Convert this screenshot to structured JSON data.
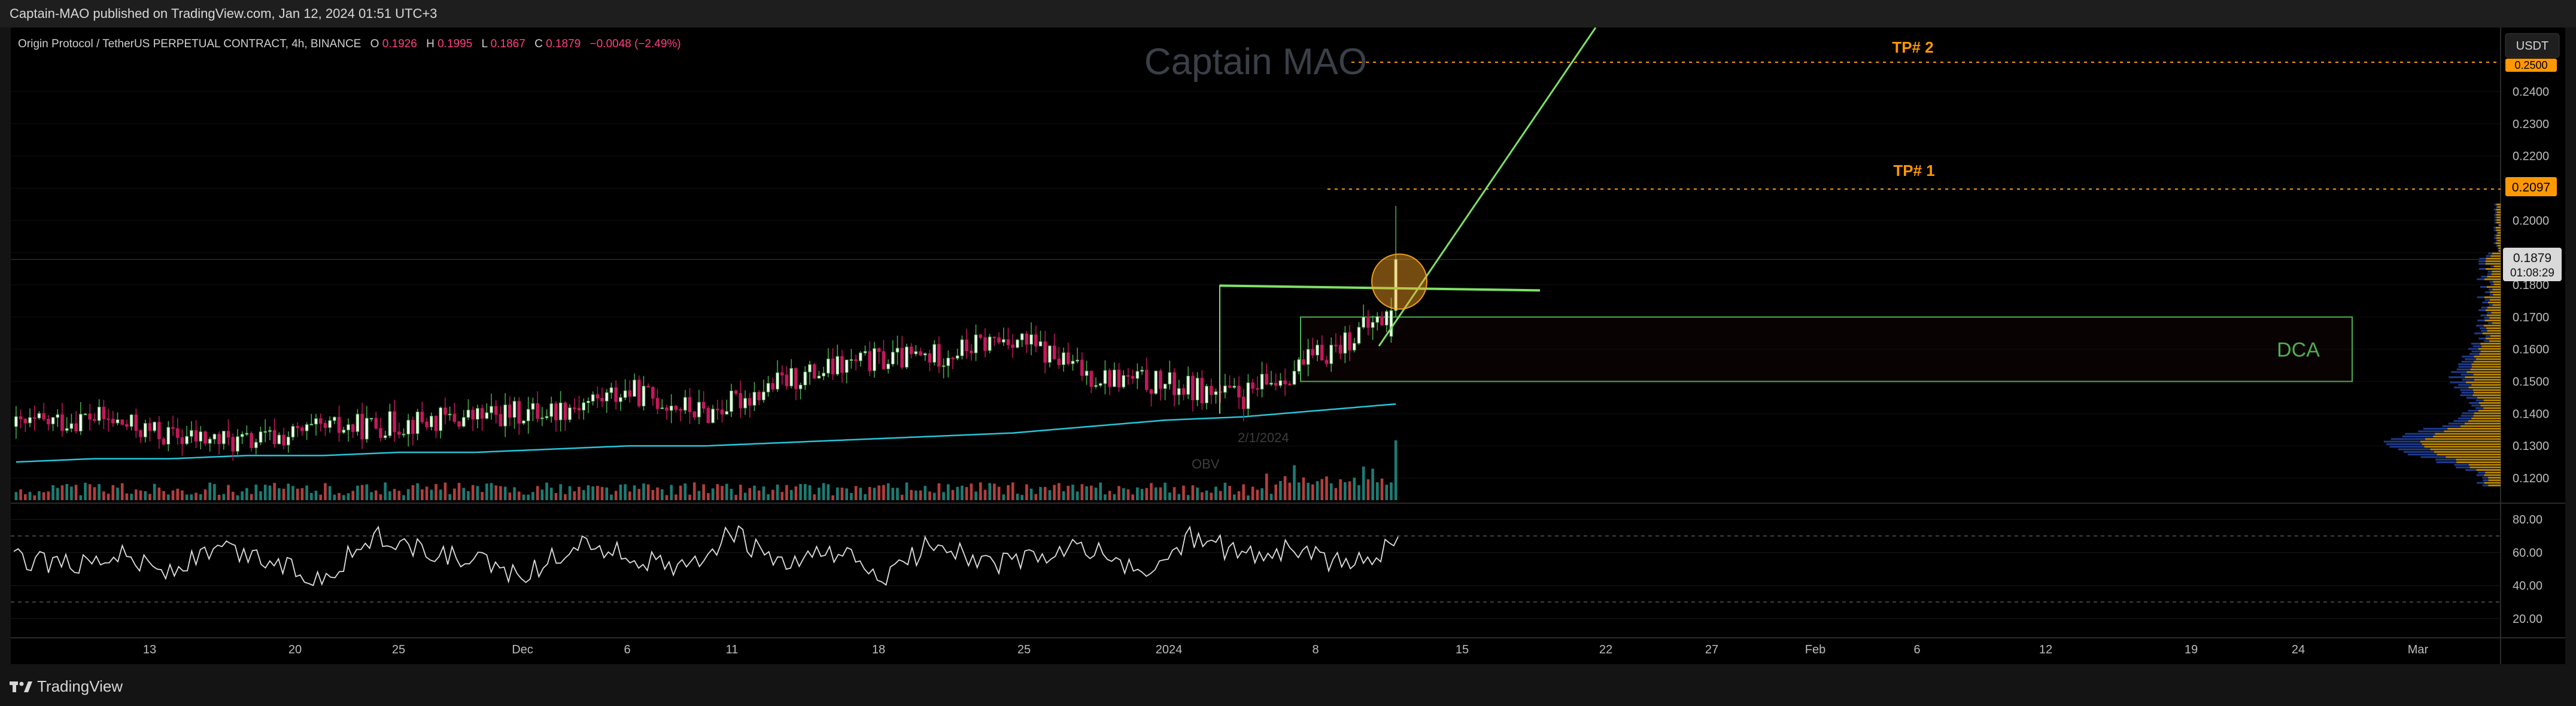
{
  "header": {
    "published": "Captain-MAO published on TradingView.com, Jan 12, 2024 01:51 UTC+3"
  },
  "legend": {
    "symbol": "Origin Protocol / TetherUS PERPETUAL CONTRACT, 4h, BINANCE",
    "o_label": "O",
    "o_value": "0.1926",
    "h_label": "H",
    "h_value": "0.1995",
    "l_label": "L",
    "l_value": "0.1867",
    "c_label": "C",
    "c_value": "0.1879",
    "change": "−0.0048 (−2.49%)"
  },
  "watermark": "Captain MAO",
  "currency_button": "USDT",
  "annotations": {
    "tp2": "TP# 2",
    "tp1": "TP# 1",
    "dca": "DCA",
    "date_faint": "2/1/2024",
    "obv_faint": "OBV"
  },
  "price_tags": {
    "tp1_price": "0.2097",
    "tp2_price": "0.2500",
    "last_price": "0.1879",
    "countdown": "01:08:29"
  },
  "footer": {
    "brand": "TradingView"
  },
  "colors": {
    "bull": "#26a69a",
    "bear": "#ef5350",
    "candle_up_fill": "#ffffff",
    "candle_up_edge": "#4caf50",
    "candle_down": "#c2185b",
    "ma": "#26c6da",
    "trend": "#7ee066",
    "tp": "#ff9800",
    "dca_box": "#4caf50",
    "rsi": "#e0e0e0",
    "volume_profile_up": "#b8860b",
    "volume_profile_down": "#1e3a8a"
  },
  "chart_data": [
    {
      "type": "candlestick",
      "title": "Origin Protocol / TetherUS PERPETUAL CONTRACT, 4h, BINANCE",
      "x_ticks": [
        "13",
        "20",
        "25",
        "Dec",
        "6",
        "11",
        "18",
        "25",
        "2024",
        "8",
        "15",
        "22",
        "27",
        "Feb",
        "6",
        "12",
        "19",
        "24",
        "Mar"
      ],
      "y_ticks": [
        "0.1200",
        "0.1300",
        "0.1400",
        "0.1500",
        "0.1600",
        "0.1700",
        "0.1800",
        "0.1900",
        "0.2000",
        "0.2100",
        "0.2200",
        "0.2300",
        "0.2400"
      ],
      "ylim": [
        0.115,
        0.258
      ],
      "x_dates": [
        "Nov 9",
        "Nov 13",
        "Nov 17",
        "Nov 21",
        "Nov 25",
        "Nov 29",
        "Dec 3",
        "Dec 7",
        "Dec 11",
        "Dec 15",
        "Dec 19",
        "Dec 23",
        "Dec 27",
        "Dec 31",
        "Jan 3",
        "Jan 5",
        "Jan 7",
        "Jan 9",
        "Jan 11"
      ],
      "close": [
        0.136,
        0.139,
        0.133,
        0.131,
        0.135,
        0.137,
        0.139,
        0.141,
        0.147,
        0.14,
        0.15,
        0.156,
        0.158,
        0.164,
        0.152,
        0.149,
        0.145,
        0.158,
        0.172
      ],
      "high": [
        0.14,
        0.142,
        0.145,
        0.136,
        0.138,
        0.141,
        0.143,
        0.148,
        0.15,
        0.152,
        0.17,
        0.163,
        0.162,
        0.167,
        0.16,
        0.178,
        0.18,
        0.178,
        0.205
      ],
      "low": [
        0.13,
        0.132,
        0.129,
        0.124,
        0.129,
        0.131,
        0.134,
        0.137,
        0.14,
        0.136,
        0.14,
        0.15,
        0.151,
        0.153,
        0.146,
        0.147,
        0.14,
        0.146,
        0.16
      ],
      "series": [
        {
          "name": "MA",
          "values": [
            0.125,
            0.126,
            0.126,
            0.127,
            0.127,
            0.128,
            0.128,
            0.129,
            0.13,
            0.13,
            0.131,
            0.132,
            0.133,
            0.134,
            0.136,
            0.138,
            0.139,
            0.141,
            0.143
          ]
        }
      ],
      "levels": {
        "tp1": 0.2097,
        "tp2": 0.25,
        "last": 0.1879,
        "breakout_line": 0.179
      },
      "zone": {
        "label": "DCA",
        "low": 0.15,
        "high": 0.17
      },
      "trendline": {
        "from": [
          "Jan 10",
          0.161
        ],
        "to": [
          "Jan 30",
          0.258
        ]
      }
    },
    {
      "type": "line",
      "title": "",
      "ylabel": "RSI",
      "y_ticks": [
        "20.00",
        "40.00",
        "60.00",
        "80.00"
      ],
      "ylim": [
        12,
        88
      ],
      "bands": [
        30,
        70
      ],
      "values": [
        58,
        52,
        60,
        48,
        62,
        55,
        44,
        70,
        60,
        54,
        46,
        66,
        58,
        48,
        72,
        50,
        61,
        44,
        68,
        52,
        57,
        63,
        45,
        70,
        58,
        62,
        51,
        66
      ]
    }
  ]
}
